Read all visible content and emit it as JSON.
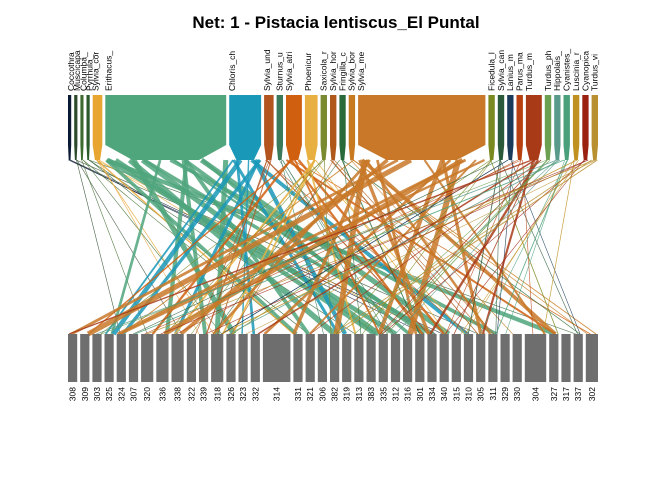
{
  "title": "Net: 1 - Pistacia lentiscus_El Puntal",
  "colors": {
    "lower_box": "#6e6e6e",
    "palette": [
      "#1b2a3a",
      "#2a5a2a",
      "#4a7a2a",
      "#e0a020",
      "#4aa57a",
      "#1a98b8",
      "#c86a10",
      "#d08a20",
      "#b84010",
      "#6aa050",
      "#9a3010",
      "#e8b040",
      "#5aaf9a",
      "#a82010"
    ]
  },
  "higher_level": [
    {
      "label": "Coccothra",
      "w": 1,
      "color": "#0b1a33"
    },
    {
      "label": "Muscicapa",
      "w": 1,
      "color": "#2c4a2a"
    },
    {
      "label": "Columba_",
      "w": 1,
      "color": "#3d6b2d"
    },
    {
      "label": "Pyrrhula_",
      "w": 1,
      "color": "#2a5a2a"
    },
    {
      "label": "Sylvia_cor",
      "w": 3,
      "color": "#e8a530"
    },
    {
      "label": "Erithacus_",
      "w": 38,
      "color": "#4fa57c"
    },
    {
      "label": "Chloris_ch",
      "w": 10,
      "color": "#1a98b8"
    },
    {
      "label": "Sylvia_und",
      "w": 3,
      "color": "#b3541e"
    },
    {
      "label": "Sturnus_u",
      "w": 2,
      "color": "#3a7a5a"
    },
    {
      "label": "Sylvia_atri",
      "w": 5,
      "color": "#d06010"
    },
    {
      "label": "Phoenicur",
      "w": 4,
      "color": "#e8b040"
    },
    {
      "label": "Saxicola_r",
      "w": 2,
      "color": "#7a8a30"
    },
    {
      "label": "Sylvia_hor",
      "w": 2,
      "color": "#b0581a"
    },
    {
      "label": "Fringilla_c",
      "w": 2,
      "color": "#2a6a3a"
    },
    {
      "label": "Sylvia_bor",
      "w": 2,
      "color": "#c87a20"
    },
    {
      "label": "Sylvia_me",
      "w": 40,
      "color": "#c87828"
    },
    {
      "label": "Ficedula_l",
      "w": 2,
      "color": "#7a8a20"
    },
    {
      "label": "Sylvia_can",
      "w": 2,
      "color": "#2a5a3a"
    },
    {
      "label": "Lanius_m",
      "w": 2,
      "color": "#1a3a5a"
    },
    {
      "label": "Parus_ma",
      "w": 2,
      "color": "#b84010"
    },
    {
      "label": "Turdus_m",
      "w": 5,
      "color": "#a83a18"
    },
    {
      "label": "Turdus_ph",
      "w": 2,
      "color": "#6aa050"
    },
    {
      "label": "Hippolais_",
      "w": 2,
      "color": "#5a9a8a"
    },
    {
      "label": "Cyanistes_",
      "w": 2,
      "color": "#4aa07a"
    },
    {
      "label": "Luscinia_r",
      "w": 2,
      "color": "#c09020"
    },
    {
      "label": "Cyanopica",
      "w": 2,
      "color": "#9a2010"
    },
    {
      "label": "Turdus_vi",
      "w": 2,
      "color": "#b89030"
    }
  ],
  "lower_level": [
    {
      "label": "308",
      "w": 3
    },
    {
      "label": "309",
      "w": 3
    },
    {
      "label": "303",
      "w": 3
    },
    {
      "label": "325",
      "w": 3
    },
    {
      "label": "324",
      "w": 3
    },
    {
      "label": "307",
      "w": 3
    },
    {
      "label": "320",
      "w": 4
    },
    {
      "label": "336",
      "w": 4
    },
    {
      "label": "338",
      "w": 4
    },
    {
      "label": "322",
      "w": 3
    },
    {
      "label": "339",
      "w": 3
    },
    {
      "label": "318",
      "w": 4
    },
    {
      "label": "326",
      "w": 3
    },
    {
      "label": "323",
      "w": 3
    },
    {
      "label": "332",
      "w": 3
    },
    {
      "label": "314",
      "w": 9
    },
    {
      "label": "331",
      "w": 3
    },
    {
      "label": "321",
      "w": 3
    },
    {
      "label": "306",
      "w": 3
    },
    {
      "label": "382",
      "w": 3
    },
    {
      "label": "319",
      "w": 3
    },
    {
      "label": "313",
      "w": 3
    },
    {
      "label": "383",
      "w": 3
    },
    {
      "label": "335",
      "w": 3
    },
    {
      "label": "312",
      "w": 3
    },
    {
      "label": "316",
      "w": 3
    },
    {
      "label": "301",
      "w": 3
    },
    {
      "label": "334",
      "w": 3
    },
    {
      "label": "340",
      "w": 3
    },
    {
      "label": "315",
      "w": 3
    },
    {
      "label": "310",
      "w": 3
    },
    {
      "label": "305",
      "w": 3
    },
    {
      "label": "311",
      "w": 3
    },
    {
      "label": "329",
      "w": 3
    },
    {
      "label": "330",
      "w": 3
    },
    {
      "label": "304",
      "w": 7
    },
    {
      "label": "327",
      "w": 3
    },
    {
      "label": "317",
      "w": 3
    },
    {
      "label": "337",
      "w": 3
    },
    {
      "label": "302",
      "w": 4
    }
  ]
}
